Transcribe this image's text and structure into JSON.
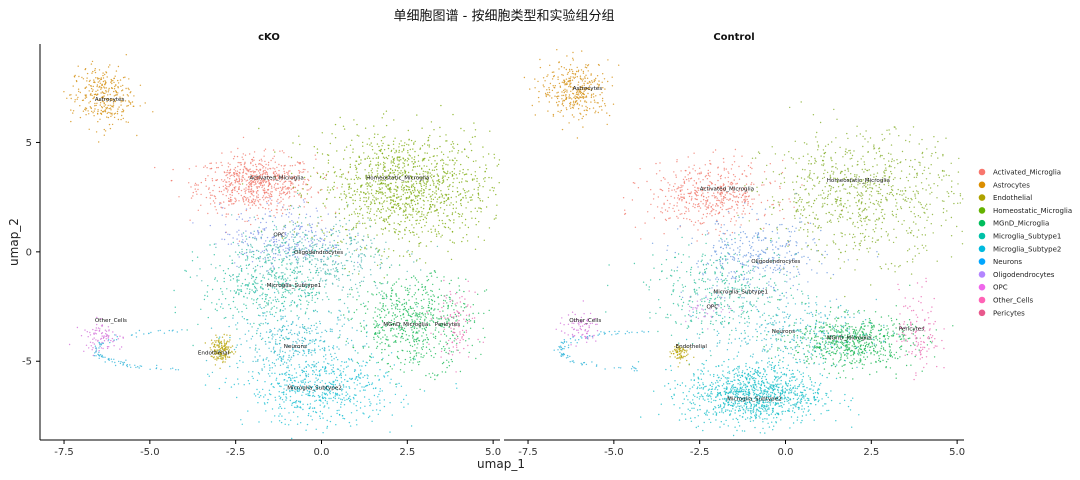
{
  "title": "单细胞图谱 - 按细胞类型和实验组分组",
  "chart_data": {
    "type": "scatter",
    "xlabel": "umap_1",
    "ylabel": "umap_2",
    "xlim": [
      -8.2,
      5.2
    ],
    "ylim": [
      -8.6,
      9.5
    ],
    "xticks": [
      -7.5,
      -5.0,
      -2.5,
      0.0,
      2.5,
      5.0
    ],
    "xtick_labels": [
      "-7.5",
      "-5.0",
      "-2.5",
      "0.0",
      "2.5",
      "5.0"
    ],
    "yticks": [
      -5,
      0,
      5
    ],
    "ytick_labels": [
      "-5",
      "0",
      "5"
    ],
    "legend_position": "right",
    "grid": false,
    "legend": [
      {
        "name": "Activated_Microglia",
        "color": "#F8766D"
      },
      {
        "name": "Astrocytes",
        "color": "#DB8E00"
      },
      {
        "name": "Endothelial",
        "color": "#AEA200"
      },
      {
        "name": "Homeostatic_Microglia",
        "color": "#64B200"
      },
      {
        "name": "MGnD_Microglia",
        "color": "#00BD5C"
      },
      {
        "name": "Microglia_Subtype1",
        "color": "#00C1A7"
      },
      {
        "name": "Microglia_Subtype2",
        "color": "#00BADE"
      },
      {
        "name": "Neurons",
        "color": "#00A6FF"
      },
      {
        "name": "Oligodendrocytes",
        "color": "#B385FF"
      },
      {
        "name": "OPC",
        "color": "#EF67EB"
      },
      {
        "name": "Other_Cells",
        "color": "#FF63B6"
      },
      {
        "name": "Pericytes",
        "color": "#E8588C"
      }
    ],
    "panels": [
      {
        "title": "cKO",
        "clusters": [
          {
            "cell_type": "Activated_Microglia",
            "color": "#F17A6E",
            "center": [
              -1.9,
              3.1
            ],
            "spread": [
              0.85,
              0.65
            ],
            "n": 700
          },
          {
            "cell_type": "Homeostatic_Microglia",
            "color": "#7FAD12",
            "center": [
              2.4,
              2.9
            ],
            "spread": [
              1.25,
              1.3
            ],
            "n": 1300
          },
          {
            "cell_type": "Astrocytes",
            "color": "#D49011",
            "center": [
              -6.4,
              7.1
            ],
            "spread": [
              0.45,
              0.7
            ],
            "n": 320
          },
          {
            "cell_type": "OPC",
            "color": "#7E92E8",
            "center": [
              -1.1,
              0.7
            ],
            "spread": [
              0.9,
              0.7
            ],
            "n": 260
          },
          {
            "cell_type": "Oligodendrocytes",
            "color": "#4FB7B2",
            "center": [
              -0.2,
              -0.3
            ],
            "spread": [
              1.2,
              0.9
            ],
            "n": 450
          },
          {
            "cell_type": "Microglia_Subtype1",
            "color": "#25BE9E",
            "center": [
              -1.5,
              -1.6
            ],
            "spread": [
              1.0,
              1.0
            ],
            "n": 450
          },
          {
            "cell_type": "MGnD_Microglia",
            "color": "#1DBA5A",
            "center": [
              2.7,
              -3.2
            ],
            "spread": [
              0.85,
              1.05
            ],
            "n": 650
          },
          {
            "cell_type": "Neurons",
            "color": "#31B6C9",
            "center": [
              -0.8,
              -4.1
            ],
            "spread": [
              1.0,
              0.8
            ],
            "n": 350
          },
          {
            "cell_type": "Microglia_Subtype2",
            "color": "#1ABFD3",
            "center": [
              0.0,
              -6.3
            ],
            "spread": [
              1.1,
              0.8
            ],
            "n": 600
          },
          {
            "cell_type": "Endothelial",
            "color": "#B7A100",
            "center": [
              -2.9,
              -4.5
            ],
            "spread": [
              0.16,
              0.28
            ],
            "n": 150
          },
          {
            "cell_type": "Other_Cells",
            "color": "#D36FD8",
            "center": [
              -6.4,
              -3.9
            ],
            "spread": [
              0.3,
              0.35
            ],
            "n": 90
          },
          {
            "cell_type": "Pericytes",
            "color": "#EA6AB2",
            "center": [
              3.9,
              -3.2
            ],
            "spread": [
              0.3,
              0.8
            ],
            "n": 100
          }
        ],
        "arc": {
          "color": "#2FB4D9",
          "n": 90
        },
        "labels": [
          {
            "text": "Astrocytes",
            "x": -6.6,
            "y": 6.9
          },
          {
            "text": "Activated_Microglia",
            "x": -2.1,
            "y": 3.3
          },
          {
            "text": "Homeostatic_Microglia",
            "x": 1.3,
            "y": 3.3
          },
          {
            "text": "OPC",
            "x": -1.4,
            "y": 0.7
          },
          {
            "text": "Oligodendrocytes",
            "x": -0.8,
            "y": -0.1
          },
          {
            "text": "Microglia_Subtype1",
            "x": -1.6,
            "y": -1.6
          },
          {
            "text": "Other_Cells",
            "x": -6.6,
            "y": -3.2
          },
          {
            "text": "MGnD_Microglia",
            "x": 1.8,
            "y": -3.4
          },
          {
            "text": "Pericytes",
            "x": 3.3,
            "y": -3.4
          },
          {
            "text": "Endothelial",
            "x": -3.6,
            "y": -4.7
          },
          {
            "text": "Neurons",
            "x": -1.1,
            "y": -4.4
          },
          {
            "text": "Microglia_Subtype2",
            "x": -1.0,
            "y": -6.3
          }
        ]
      },
      {
        "title": "Control",
        "clusters": [
          {
            "cell_type": "Activated_Microglia",
            "color": "#F17A6E",
            "center": [
              -2.2,
              2.6
            ],
            "spread": [
              0.9,
              0.75
            ],
            "n": 500
          },
          {
            "cell_type": "Homeostatic_Microglia",
            "color": "#84AE2A",
            "center": [
              2.2,
              2.6
            ],
            "spread": [
              1.4,
              1.4
            ],
            "n": 850
          },
          {
            "cell_type": "Astrocytes",
            "color": "#D49011",
            "center": [
              -6.1,
              7.4
            ],
            "spread": [
              0.5,
              0.65
            ],
            "n": 350
          },
          {
            "cell_type": "Oligodendrocytes",
            "color": "#6C9AE0",
            "center": [
              -0.9,
              -0.3
            ],
            "spread": [
              1.0,
              0.9
            ],
            "n": 350
          },
          {
            "cell_type": "Microglia_Subtype1",
            "color": "#2DBF9B",
            "center": [
              -1.8,
              -1.8
            ],
            "spread": [
              1.1,
              1.0
            ],
            "n": 380
          },
          {
            "cell_type": "MGnD_Microglia",
            "color": "#19B653",
            "center": [
              1.9,
              -4.1
            ],
            "spread": [
              0.9,
              0.6
            ],
            "n": 650
          },
          {
            "cell_type": "Neurons",
            "color": "#31B6C9",
            "center": [
              0.2,
              -3.7
            ],
            "spread": [
              1.2,
              0.7
            ],
            "n": 300
          },
          {
            "cell_type": "Microglia_Subtype2",
            "color": "#17BEC8",
            "center": [
              -0.9,
              -6.5
            ],
            "spread": [
              1.0,
              0.7
            ],
            "n": 1100
          },
          {
            "cell_type": "Endothelial",
            "color": "#B7A100",
            "center": [
              -3.1,
              -4.6
            ],
            "spread": [
              0.13,
              0.22
            ],
            "n": 70
          },
          {
            "cell_type": "Other_Cells",
            "color": "#D36FD8",
            "center": [
              -6.0,
              -3.5
            ],
            "spread": [
              0.3,
              0.35
            ],
            "n": 80
          },
          {
            "cell_type": "Pericytes",
            "color": "#EA6AB2",
            "center": [
              3.9,
              -3.6
            ],
            "spread": [
              0.3,
              1.0
            ],
            "n": 120
          },
          {
            "cell_type": "OPC",
            "color": "#C884E0",
            "center": [
              -2.3,
              -2.6
            ],
            "spread": [
              0.4,
              0.3
            ],
            "n": 40
          }
        ],
        "arc": {
          "color": "#2FB4D9",
          "n": 90
        },
        "labels": [
          {
            "text": "Astrocytes",
            "x": -6.2,
            "y": 7.4
          },
          {
            "text": "Activated_Microglia",
            "x": -2.5,
            "y": 2.8
          },
          {
            "text": "Homeostatic_Microglia",
            "x": 1.2,
            "y": 3.2
          },
          {
            "text": "Oligodendrocytes",
            "x": -1.0,
            "y": -0.5
          },
          {
            "text": "Microglia_Subtype1",
            "x": -2.1,
            "y": -1.9
          },
          {
            "text": "OPC",
            "x": -2.3,
            "y": -2.6
          },
          {
            "text": "Other_Cells",
            "x": -6.3,
            "y": -3.2
          },
          {
            "text": "Neurons",
            "x": -0.4,
            "y": -3.7
          },
          {
            "text": "MGnD_Microglia",
            "x": 1.2,
            "y": -4.0
          },
          {
            "text": "Pericytes",
            "x": 3.3,
            "y": -3.6
          },
          {
            "text": "Endothelial",
            "x": -3.2,
            "y": -4.4
          },
          {
            "text": "Microglia_Subtype2",
            "x": -1.7,
            "y": -6.8
          }
        ]
      }
    ]
  }
}
